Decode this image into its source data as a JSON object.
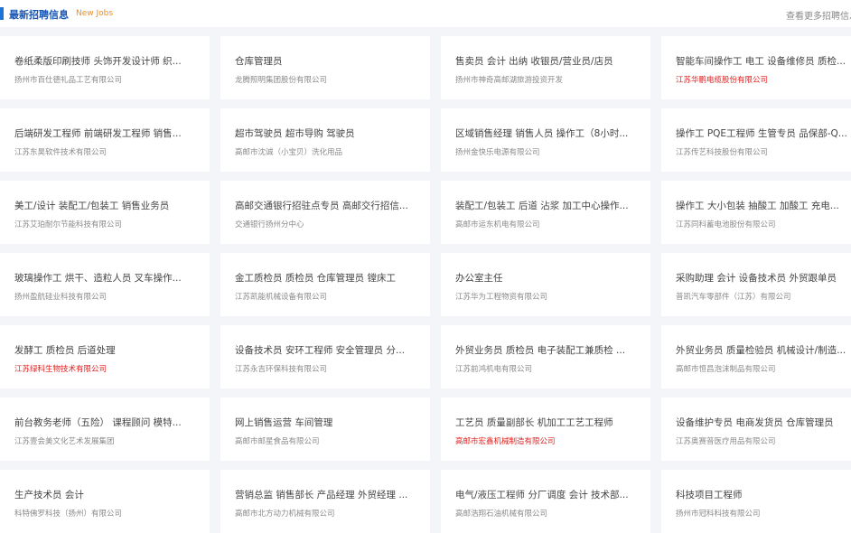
{
  "header": {
    "title": "最新招聘信息",
    "subtitle": "New Jobs",
    "more": "查看更多招聘信息"
  },
  "jobs": [
    {
      "title": "卷纸柔版印刷技师 头饰开发设计师 织...",
      "company": "扬州市百仕德礼品工艺有限公司"
    },
    {
      "title": "仓库管理员",
      "company": "龙腾照明集团股份有限公司"
    },
    {
      "title": "售卖员 会计 出纳 收银员/营业员/店员",
      "company": "扬州市神奇高邮湖旅游投资开发"
    },
    {
      "title": "智能车间操作工 电工 设备维修员 质检...",
      "company": "江苏华鹏电缆股份有限公司",
      "highlight": true
    },
    {
      "title": "后端研发工程师 前端研发工程师 销售...",
      "company": "江苏东昊软件技术有限公司"
    },
    {
      "title": "超市驾驶员 超市导购 驾驶员",
      "company": "高邮市沈诚（小宝贝）洗化用品"
    },
    {
      "title": "区域销售经理 销售人员 操作工（8小时...",
      "company": "扬州金快乐电源有限公司"
    },
    {
      "title": "操作工 PQE工程师 生管专员 品保部-Q...",
      "company": "江苏传艺科技股份有限公司"
    },
    {
      "title": "美工/设计 装配工/包装工 销售业务员",
      "company": "江苏艾珀耐尔节能科技有限公司"
    },
    {
      "title": "高邮交通银行招驻点专员 高邮交行招信...",
      "company": "交通银行扬州分中心"
    },
    {
      "title": "装配工/包装工 后道 沾浆 加工中心操作...",
      "company": "高邮市运东机电有限公司"
    },
    {
      "title": "操作工 大小包装 抽酸工 加酸工 充电...",
      "company": "江苏同科蓄电池股份有限公司"
    },
    {
      "title": "玻璃操作工 烘干、造粒人员 叉车操作...",
      "company": "扬州盈航硅业科技有限公司"
    },
    {
      "title": "金工质检员 质检员 仓库管理员 镗床工",
      "company": "江苏凯能机械设备有限公司"
    },
    {
      "title": "办公室主任",
      "company": "江苏华为工程物资有限公司"
    },
    {
      "title": "采购助理 会计 设备技术员 外贸跟单员",
      "company": "普凯汽车零部件（江苏）有限公司"
    },
    {
      "title": "发酵工 质检员 后道处理",
      "company": "江苏绿科生物技术有限公司",
      "highlight": true
    },
    {
      "title": "设备技术员 安环工程师 安全管理员 分...",
      "company": "江苏永吉环保科技有限公司"
    },
    {
      "title": "外贸业务员 质检员 电子装配工兼质检 ...",
      "company": "江苏前鸿机电有限公司"
    },
    {
      "title": "外贸业务员 质量检验员 机械设计/制造...",
      "company": "高邮市恒昌泡沫制品有限公司"
    },
    {
      "title": "前台教务老师（五险） 课程顾问 模特...",
      "company": "江苏壹会美文化艺术发展集团"
    },
    {
      "title": "网上销售运营 车间管理",
      "company": "高邮市邮星食品有限公司"
    },
    {
      "title": "工艺员 质量副部长 机加工工艺工程师",
      "company": "高邮市宏鑫机械制造有限公司",
      "highlight": true
    },
    {
      "title": "设备维护专员 电商发货员 仓库管理员",
      "company": "江苏奥赛普医疗用品有限公司"
    },
    {
      "title": "生产技术员 会计",
      "company": "科特佛罗科技（扬州）有限公司"
    },
    {
      "title": "营销总监 销售部长 产品经理 外贸经理 ...",
      "company": "高邮市北方动力机械有限公司"
    },
    {
      "title": "电气/液压工程师 分厂调度 会计 技术部...",
      "company": "高邮浩翔石油机械有限公司"
    },
    {
      "title": "科技项目工程师",
      "company": "扬州市冠科科技有限公司"
    }
  ]
}
